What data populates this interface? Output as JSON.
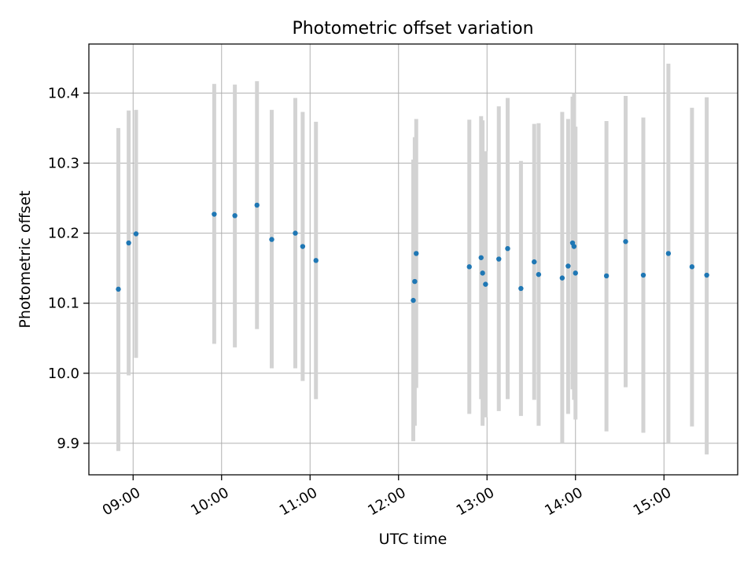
{
  "chart_data": {
    "type": "scatter",
    "title": "Photometric offset variation",
    "xlabel": "UTC time",
    "ylabel": "Photometric offset",
    "x_ticks": [
      "09:00",
      "10:00",
      "11:00",
      "12:00",
      "13:00",
      "14:00",
      "15:00"
    ],
    "y_ticks": [
      "9.9",
      "10.0",
      "10.1",
      "10.2",
      "10.3",
      "10.4"
    ],
    "xlim": [
      "08:30",
      "15:50"
    ],
    "ylim": [
      9.855,
      10.47
    ],
    "grid": true,
    "colors": {
      "points": "#1f77b4",
      "error_bars": "#d3d3d3",
      "grid": "#b0b0b0"
    },
    "points": [
      {
        "x": "08:50",
        "y": 10.12,
        "low": 9.889,
        "high": 10.35
      },
      {
        "x": "08:57",
        "y": 10.186,
        "low": 9.997,
        "high": 10.375
      },
      {
        "x": "09:02",
        "y": 10.199,
        "low": 10.022,
        "high": 10.376
      },
      {
        "x": "09:55",
        "y": 10.227,
        "low": 10.042,
        "high": 10.413
      },
      {
        "x": "10:09",
        "y": 10.225,
        "low": 10.037,
        "high": 10.412
      },
      {
        "x": "10:24",
        "y": 10.24,
        "low": 10.063,
        "high": 10.417
      },
      {
        "x": "10:34",
        "y": 10.191,
        "low": 10.007,
        "high": 10.376
      },
      {
        "x": "10:50",
        "y": 10.2,
        "low": 10.007,
        "high": 10.393
      },
      {
        "x": "10:55",
        "y": 10.181,
        "low": 9.989,
        "high": 10.373
      },
      {
        "x": "11:04",
        "y": 10.161,
        "low": 9.963,
        "high": 10.359
      },
      {
        "x": "12:10",
        "y": 10.104,
        "low": 9.903,
        "high": 10.305
      },
      {
        "x": "12:11",
        "y": 10.131,
        "low": 9.925,
        "high": 10.337
      },
      {
        "x": "12:12",
        "y": 10.171,
        "low": 9.979,
        "high": 10.363
      },
      {
        "x": "12:48",
        "y": 10.152,
        "low": 9.942,
        "high": 10.362
      },
      {
        "x": "12:56",
        "y": 10.165,
        "low": 9.963,
        "high": 10.367
      },
      {
        "x": "12:57",
        "y": 10.143,
        "low": 9.925,
        "high": 10.361
      },
      {
        "x": "12:59",
        "y": 10.127,
        "low": 9.937,
        "high": 10.317
      },
      {
        "x": "13:08",
        "y": 10.163,
        "low": 9.946,
        "high": 10.381
      },
      {
        "x": "13:14",
        "y": 10.178,
        "low": 9.963,
        "high": 10.393
      },
      {
        "x": "13:23",
        "y": 10.121,
        "low": 9.939,
        "high": 10.303
      },
      {
        "x": "13:32",
        "y": 10.159,
        "low": 9.962,
        "high": 10.356
      },
      {
        "x": "13:35",
        "y": 10.141,
        "low": 9.925,
        "high": 10.357
      },
      {
        "x": "13:51",
        "y": 10.136,
        "low": 9.9,
        "high": 10.373
      },
      {
        "x": "13:55",
        "y": 10.153,
        "low": 9.942,
        "high": 10.363
      },
      {
        "x": "13:58",
        "y": 10.186,
        "low": 9.977,
        "high": 10.395
      },
      {
        "x": "13:59",
        "y": 10.181,
        "low": 9.962,
        "high": 10.4
      },
      {
        "x": "14:00",
        "y": 10.143,
        "low": 9.934,
        "high": 10.352
      },
      {
        "x": "14:21",
        "y": 10.139,
        "low": 9.917,
        "high": 10.36
      },
      {
        "x": "14:34",
        "y": 10.188,
        "low": 9.98,
        "high": 10.396
      },
      {
        "x": "14:46",
        "y": 10.14,
        "low": 9.915,
        "high": 10.365
      },
      {
        "x": "15:03",
        "y": 10.171,
        "low": 9.9,
        "high": 10.442
      },
      {
        "x": "15:19",
        "y": 10.152,
        "low": 9.924,
        "high": 10.379
      },
      {
        "x": "15:29",
        "y": 10.14,
        "low": 9.884,
        "high": 10.394
      }
    ]
  }
}
